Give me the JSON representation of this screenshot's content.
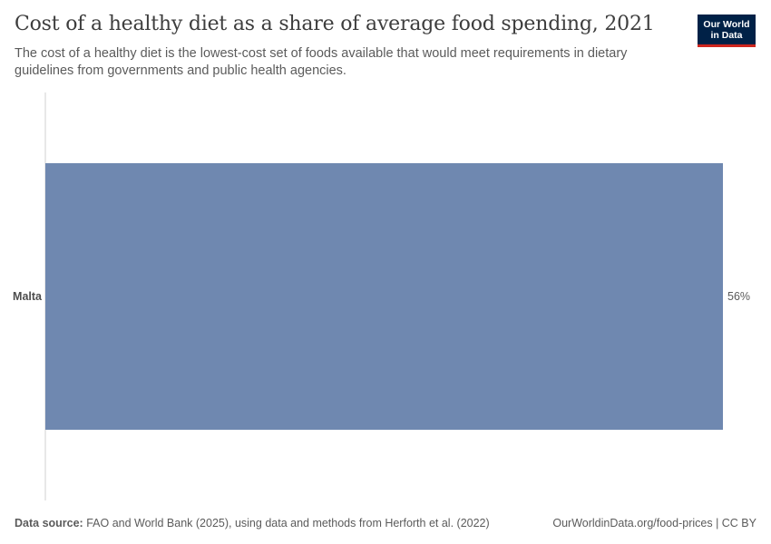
{
  "header": {
    "title": "Cost of a healthy diet as a share of average food spending, 2021",
    "subtitle": "The cost of a healthy diet is the lowest-cost set of foods available that would meet requirements in dietary guidelines from governments and public health agencies.",
    "logo_line1": "Our World",
    "logo_line2": "in Data"
  },
  "footer": {
    "source_label": "Data source:",
    "source_text": "FAO and World Bank (2025), using data and methods from Herforth et al. (2022)",
    "url": "OurWorldinData.org/food-prices | CC BY"
  },
  "colors": {
    "bar": "#6f88b0",
    "axis": "#d0d0d0",
    "logo_bg": "#002147",
    "logo_accent": "#ce261e"
  },
  "chart_data": {
    "type": "bar",
    "orientation": "horizontal",
    "title": "Cost of a healthy diet as a share of average food spending, 2021",
    "categories": [
      "Malta"
    ],
    "values": [
      56
    ],
    "value_labels": [
      "56%"
    ],
    "unit": "%",
    "xlim": [
      0,
      56
    ],
    "grid": false
  }
}
